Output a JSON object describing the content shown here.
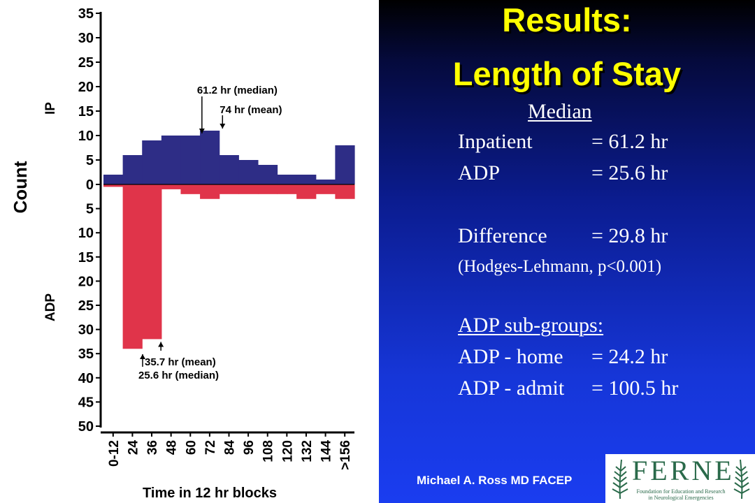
{
  "slide": {
    "title_line1": "Results:",
    "title_line2": "Length of Stay",
    "median_header": "Median",
    "rows": [
      {
        "label": "Inpatient",
        "value": "= 61.2 hr"
      },
      {
        "label": "ADP",
        "value": "= 25.6 hr"
      },
      {
        "label": "Difference",
        "value": "= 29.8 hr"
      }
    ],
    "hodges_note": "(Hodges-Lehmann,  p<0.001)",
    "subgroup_header": "ADP sub-groups:",
    "subgroups": [
      {
        "label": "ADP - home",
        "value": "= 24.2 hr"
      },
      {
        "label": "ADP - admit",
        "value": "= 100.5 hr"
      }
    ],
    "footer_author": "Michael A. Ross MD FACEP",
    "logo_text": "FERNE",
    "logo_subtitle_line1": "Foundation for Education and Research",
    "logo_subtitle_line2": "in Neurological Emergencies",
    "title_color": "#ffff00",
    "logo_color": "#2a6a4a"
  },
  "chart_data": {
    "type": "bar",
    "title": "",
    "xlabel": "Time in 12 hr blocks",
    "ylabel": "Count",
    "upper_group_label": "IP",
    "lower_group_label": "ADP",
    "categories": [
      "0-12",
      "24",
      "36",
      "48",
      "60",
      "72",
      "84",
      "96",
      "108",
      "120",
      "132",
      "144",
      ">156"
    ],
    "ylim_upper": [
      0,
      35
    ],
    "ylim_lower": [
      0,
      50
    ],
    "upper_ticks": [
      "35",
      "30",
      "25",
      "20",
      "15",
      "10",
      "5",
      "0"
    ],
    "lower_ticks": [
      "5",
      "10",
      "15",
      "20",
      "25",
      "30",
      "35",
      "40",
      "45",
      "50"
    ],
    "series": [
      {
        "name": "IP",
        "color": "#2e2d86",
        "values": [
          2,
          6,
          9,
          10,
          10,
          11,
          6,
          5,
          4,
          2,
          2,
          1,
          8
        ]
      },
      {
        "name": "ADP",
        "color": "#e0344a",
        "values": [
          0.5,
          34,
          32,
          1,
          2,
          3,
          2,
          2,
          2,
          2,
          3,
          2,
          3
        ]
      }
    ],
    "annotations": [
      {
        "text": "61.2 hr (median)",
        "group": "IP",
        "x_value": 61.2
      },
      {
        "text": "74 hr (mean)",
        "group": "IP",
        "x_value": 74
      },
      {
        "text": "35.7 hr (mean)",
        "group": "ADP",
        "x_value": 35.7
      },
      {
        "text": "25.6 hr (median)",
        "group": "ADP",
        "x_value": 25.6
      }
    ]
  }
}
